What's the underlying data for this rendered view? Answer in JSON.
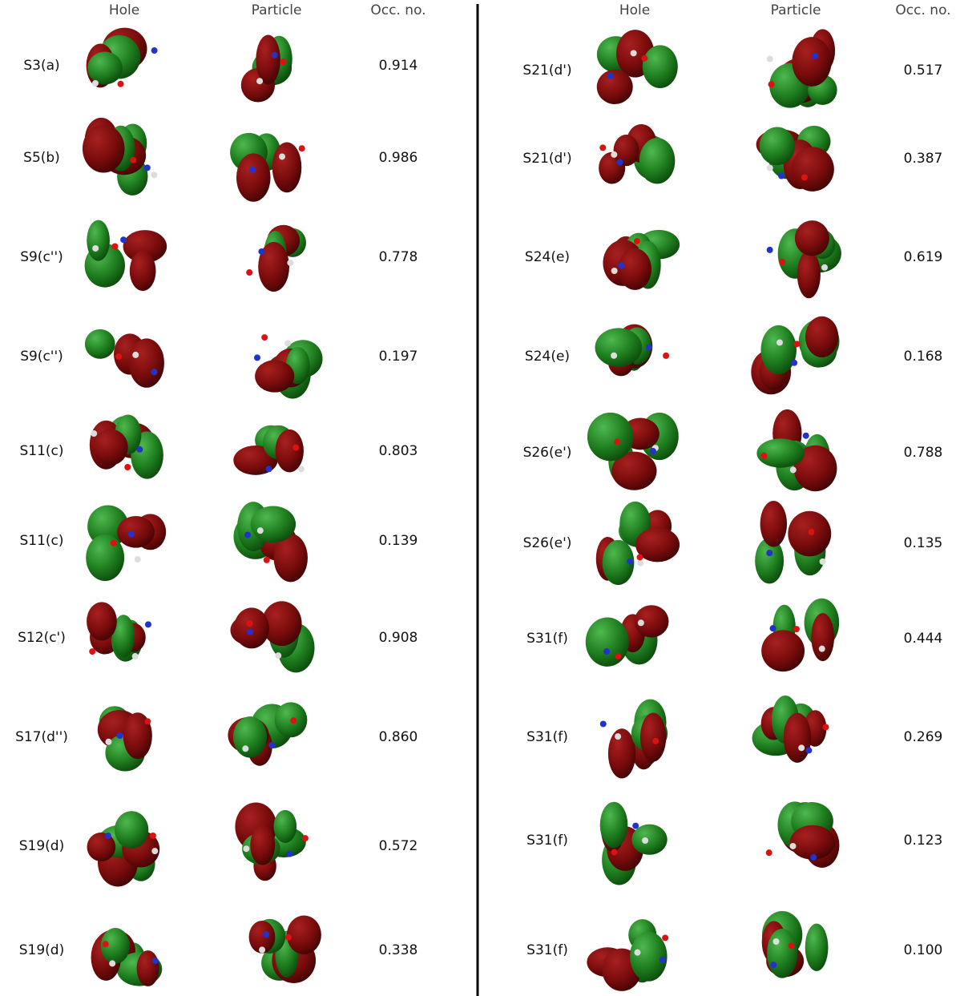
{
  "panels": [
    {
      "headers": [
        "Hole",
        "Particle",
        "Occ. no."
      ],
      "rows": [
        [
          "S3(a)",
          "0.914"
        ],
        [
          "S5(b)",
          "0.986"
        ],
        [
          "S9(c'')",
          "0.778"
        ],
        [
          "S9(c'')",
          "0.197"
        ],
        [
          "S11(c)",
          "0.803"
        ],
        [
          "S11(c)",
          "0.139"
        ],
        [
          "S12(c')",
          "0.908"
        ],
        [
          "S17(d'')",
          "0.860"
        ],
        [
          "S19(d)",
          "0.572"
        ],
        [
          "S19(d)",
          "0.338"
        ]
      ]
    },
    {
      "headers": [
        "Hole",
        "Particle",
        "Occ. no."
      ],
      "rows": [
        [
          "S21(d')",
          "0.517"
        ],
        [
          "S21(d')",
          "0.387"
        ],
        [
          "S24(e)",
          "0.619"
        ],
        [
          "S24(e)",
          "0.168"
        ],
        [
          "S26(e')",
          "0.788"
        ],
        [
          "S26(e')",
          "0.135"
        ],
        [
          "S31(f)",
          "0.444"
        ],
        [
          "S31(f)",
          "0.269"
        ],
        [
          "S31(f)",
          "0.123"
        ],
        [
          "S31(f)",
          "0.100"
        ]
      ]
    }
  ]
}
